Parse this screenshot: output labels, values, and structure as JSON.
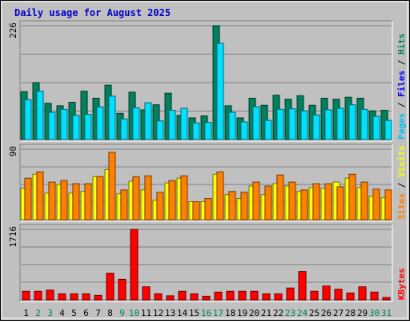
{
  "chart_data": {
    "type": "bar",
    "title": "Daily usage for August 2025",
    "categories": [
      "1",
      "2",
      "3",
      "4",
      "5",
      "6",
      "7",
      "8",
      "9",
      "10",
      "11",
      "12",
      "13",
      "14",
      "15",
      "16",
      "17",
      "18",
      "19",
      "20",
      "21",
      "22",
      "23",
      "24",
      "25",
      "26",
      "27",
      "28",
      "29",
      "30",
      "31"
    ],
    "weekend_days": [
      2,
      3,
      9,
      10,
      16,
      17,
      23,
      24,
      30,
      31
    ],
    "colors": {
      "title": "#0000cc",
      "background": "#c0c0c0",
      "frame": "#e8e8e8",
      "hits": "#00805c",
      "files": "#00e0ff",
      "pages": "#00c0f0",
      "visits": "#ffff00",
      "sites": "#ff8000",
      "kbytes": "#ff0000",
      "weekday_label": "#000000",
      "weekend_label": "#00805c"
    },
    "panels": [
      {
        "name": "Hits/Files/Pages",
        "ylabel_parts": [
          {
            "text": "Pages",
            "color": "#00c0f0"
          },
          {
            "text": " / ",
            "color": "#000000"
          },
          {
            "text": "Files",
            "color": "#0000ff"
          },
          {
            "text": " / ",
            "color": "#000000"
          },
          {
            "text": "Hits",
            "color": "#00805c"
          }
        ],
        "y_max_label": "226",
        "ylim": [
          0,
          226
        ],
        "series": [
          {
            "name": "Hits",
            "color": "#00805c",
            "values": [
              95,
              113,
              72,
              67,
              74,
              96,
              82,
              108,
              52,
              94,
              59,
              69,
              92,
              48,
              43,
              47,
              226,
              67,
              43,
              82,
              68,
              88,
              80,
              87,
              68,
              82,
              80,
              84,
              82,
              57,
              58
            ]
          },
          {
            "name": "Files",
            "color": "#00e0ff",
            "values": [
              79,
              96,
              54,
              60,
              48,
              50,
              65,
              86,
              41,
              63,
              73,
              37,
              58,
              62,
              33,
              34,
              191,
              54,
              35,
              65,
              38,
              60,
              61,
              57,
              49,
              59,
              62,
              69,
              60,
              46,
              38
            ]
          },
          {
            "name": "Pages",
            "color": "#00c0f0",
            "values": [
              0,
              0,
              0,
              0,
              0,
              0,
              0,
              0,
              0,
              0,
              0,
              0,
              0,
              0,
              0,
              0,
              0,
              0,
              0,
              0,
              0,
              0,
              0,
              0,
              0,
              0,
              0,
              0,
              0,
              0,
              0
            ]
          }
        ]
      },
      {
        "name": "Visits/Sites",
        "ylabel_parts": [
          {
            "text": "Sites",
            "color": "#ff8000"
          },
          {
            "text": " / ",
            "color": "#000000"
          },
          {
            "text": "Visits",
            "color": "#ffff00"
          }
        ],
        "y_max_label": "90",
        "ylim": [
          0,
          90
        ],
        "series": [
          {
            "name": "Visits",
            "color": "#ffff00",
            "values": [
              40,
              58,
              34,
              45,
              34,
              36,
              55,
              64,
              33,
              49,
              38,
              25,
              47,
              53,
              23,
              23,
              58,
              32,
              27,
              43,
              32,
              46,
              43,
              36,
              41,
              40,
              48,
              53,
              41,
              30,
              28
            ]
          },
          {
            "name": "Sites",
            "color": "#ff8000",
            "values": [
              53,
              61,
              48,
              50,
              46,
              46,
              55,
              86,
              38,
              55,
              56,
              35,
              50,
              56,
              23,
              27,
              61,
              36,
              35,
              48,
              43,
              57,
              48,
              38,
              46,
              46,
              42,
              58,
              48,
              39,
              38
            ]
          }
        ]
      },
      {
        "name": "KBytes",
        "ylabel_parts": [
          {
            "text": "KBytes",
            "color": "#ff0000"
          }
        ],
        "y_max_label": "1716",
        "ylim": [
          0,
          1716
        ],
        "series": [
          {
            "name": "KBytes",
            "color": "#ff0000",
            "values": [
              210,
              210,
              240,
              150,
              150,
              150,
              110,
              650,
              500,
              1716,
              320,
              150,
              100,
              210,
              150,
              90,
              190,
              210,
              210,
              210,
              150,
              150,
              290,
              690,
              210,
              340,
              260,
              170,
              320,
              190,
              60
            ]
          }
        ]
      }
    ]
  }
}
